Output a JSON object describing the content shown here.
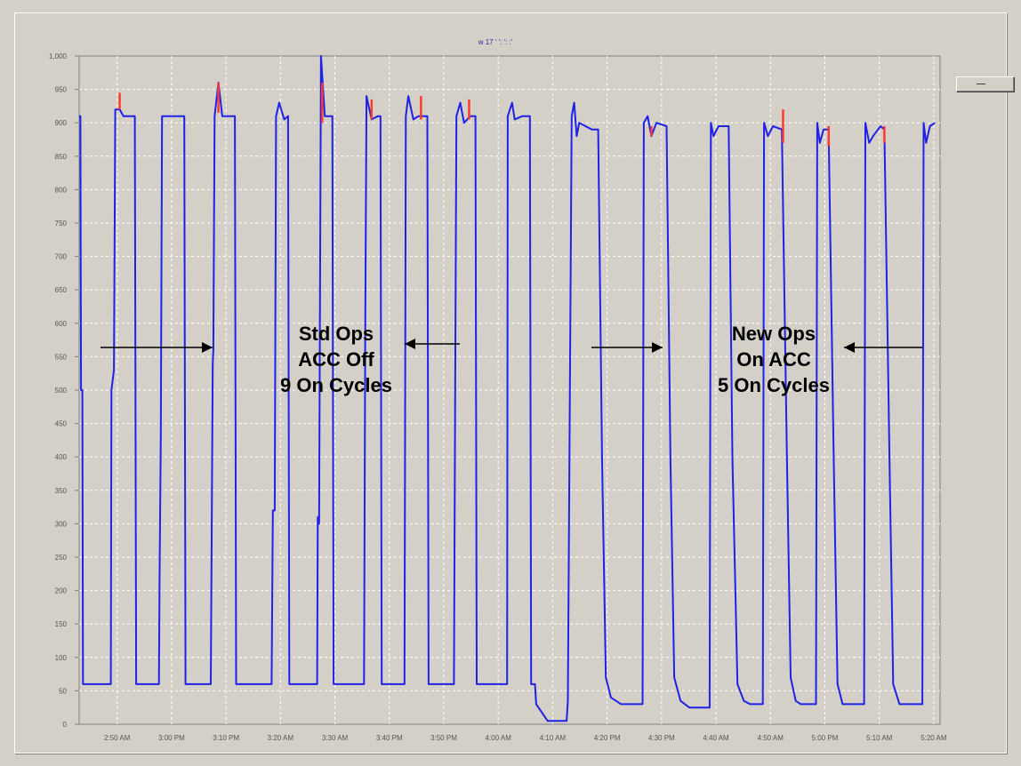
{
  "title": "w  17  ' ': ': :'",
  "y_ticks": [
    "0",
    "50",
    "100",
    "150",
    "200",
    "250",
    "300",
    "350",
    "400",
    "450",
    "500",
    "550",
    "600",
    "650",
    "700",
    "750",
    "800",
    "850",
    "900",
    "950",
    "1,000"
  ],
  "x_ticks": [
    "2:50 AM",
    "3:00 PM",
    "3:10 PM",
    "3:20 AM",
    "3:30 AM",
    "3:40 PM",
    "3:50 PM",
    "4:00 AM",
    "4:10 AM",
    "4:20 PM",
    "4:30 PM",
    "4:40 AM",
    "4:50 AM",
    "5:00 PM",
    "5:10 AM",
    "5:20 AM"
  ],
  "colors": {
    "series": "#1f22e6",
    "spike": "#ff3b30",
    "plot_bg": "#d4d0c8",
    "grid": "#ffffff"
  },
  "annotations": {
    "left": {
      "line1": "Std Ops",
      "line2": "ACC Off",
      "line3": "9 On Cycles"
    },
    "right": {
      "line1": "New Ops",
      "line2": "On ACC",
      "line3": "5 On Cycles"
    }
  },
  "button": {
    "label": "-"
  },
  "chart_data": {
    "type": "line",
    "title": "w  17  ' ': ': :'",
    "xlabel": "",
    "ylabel": "",
    "ylim": [
      0,
      1000
    ],
    "grid": true,
    "x": [
      "2:50 AM",
      "3:00 PM",
      "3:10 PM",
      "3:20 AM",
      "3:30 AM",
      "3:40 PM",
      "3:50 PM",
      "4:00 AM",
      "4:10 AM",
      "4:20 PM",
      "4:30 PM",
      "4:40 AM",
      "4:50 AM",
      "5:00 PM",
      "5:10 AM",
      "5:20 AM"
    ],
    "series": [
      {
        "points": [
          [
            0,
            910
          ],
          [
            0.1,
            910
          ],
          [
            0.15,
            500
          ],
          [
            0.25,
            500
          ],
          [
            0.3,
            60
          ],
          [
            2.5,
            60
          ],
          [
            2.55,
            500
          ],
          [
            2.75,
            530
          ],
          [
            2.85,
            920
          ],
          [
            3.2,
            920
          ],
          [
            3.5,
            910
          ],
          [
            4.3,
            910
          ],
          [
            4.4,
            910
          ],
          [
            4.5,
            60
          ],
          [
            6.3,
            60
          ],
          [
            6.35,
            215
          ],
          [
            6.45,
            430
          ],
          [
            6.55,
            910
          ],
          [
            7.3,
            910
          ],
          [
            7.7,
            910
          ],
          [
            8.3,
            910
          ],
          [
            8.4,
            60
          ],
          [
            10.4,
            60
          ],
          [
            10.55,
            540
          ],
          [
            10.6,
            560
          ],
          [
            10.7,
            910
          ],
          [
            11.0,
            960
          ],
          [
            11.3,
            910
          ],
          [
            12.0,
            910
          ],
          [
            12.3,
            910
          ],
          [
            12.4,
            60
          ],
          [
            15.2,
            60
          ],
          [
            15.3,
            320
          ],
          [
            15.45,
            320
          ],
          [
            15.55,
            910
          ],
          [
            15.8,
            930
          ],
          [
            16.2,
            905
          ],
          [
            16.5,
            910
          ],
          [
            16.6,
            60
          ],
          [
            18.8,
            60
          ],
          [
            18.85,
            310
          ],
          [
            18.95,
            300
          ],
          [
            19.1,
            1000
          ],
          [
            19.4,
            910
          ],
          [
            19.8,
            910
          ],
          [
            20.0,
            910
          ],
          [
            20.1,
            60
          ],
          [
            22.5,
            60
          ],
          [
            22.6,
            600
          ],
          [
            22.7,
            940
          ],
          [
            23.1,
            905
          ],
          [
            23.6,
            910
          ],
          [
            23.8,
            910
          ],
          [
            23.9,
            60
          ],
          [
            25.7,
            60
          ],
          [
            25.8,
            910
          ],
          [
            26.0,
            940
          ],
          [
            26.4,
            905
          ],
          [
            26.8,
            910
          ],
          [
            27.5,
            910
          ],
          [
            27.6,
            60
          ],
          [
            29.6,
            60
          ],
          [
            29.7,
            500
          ],
          [
            29.8,
            910
          ],
          [
            30.1,
            930
          ],
          [
            30.4,
            900
          ],
          [
            30.9,
            910
          ],
          [
            31.3,
            910
          ],
          [
            31.4,
            60
          ],
          [
            33.8,
            60
          ],
          [
            33.85,
            910
          ],
          [
            34.2,
            930
          ],
          [
            34.4,
            905
          ],
          [
            35.0,
            910
          ],
          [
            35.6,
            910
          ],
          [
            35.7,
            60
          ],
          [
            36.0,
            60
          ],
          [
            36.1,
            30
          ],
          [
            37.0,
            5
          ],
          [
            38.5,
            5
          ],
          [
            38.6,
            35
          ],
          [
            38.9,
            910
          ],
          [
            39.1,
            930
          ],
          [
            39.3,
            880
          ],
          [
            39.5,
            900
          ],
          [
            40.5,
            890
          ],
          [
            41.0,
            890
          ],
          [
            41.3,
            400
          ],
          [
            41.6,
            70
          ],
          [
            42.0,
            40
          ],
          [
            42.8,
            30
          ],
          [
            44.5,
            30
          ],
          [
            44.6,
            900
          ],
          [
            44.9,
            910
          ],
          [
            45.2,
            880
          ],
          [
            45.6,
            900
          ],
          [
            46.4,
            895
          ],
          [
            46.7,
            400
          ],
          [
            47.0,
            70
          ],
          [
            47.5,
            35
          ],
          [
            48.2,
            25
          ],
          [
            49.8,
            25
          ],
          [
            49.9,
            900
          ],
          [
            50.1,
            880
          ],
          [
            50.5,
            895
          ],
          [
            51.3,
            895
          ],
          [
            51.6,
            400
          ],
          [
            52.0,
            60
          ],
          [
            52.5,
            35
          ],
          [
            53.0,
            30
          ],
          [
            54.0,
            30
          ],
          [
            54.1,
            900
          ],
          [
            54.4,
            880
          ],
          [
            54.8,
            895
          ],
          [
            55.5,
            890
          ],
          [
            55.9,
            400
          ],
          [
            56.2,
            70
          ],
          [
            56.6,
            35
          ],
          [
            57.0,
            30
          ],
          [
            58.2,
            30
          ],
          [
            58.3,
            900
          ],
          [
            58.5,
            870
          ],
          [
            58.8,
            890
          ],
          [
            59.2,
            890
          ],
          [
            59.6,
            400
          ],
          [
            59.9,
            60
          ],
          [
            60.3,
            30
          ],
          [
            61.0,
            30
          ],
          [
            62.0,
            30
          ],
          [
            62.1,
            900
          ],
          [
            62.4,
            870
          ],
          [
            62.7,
            880
          ],
          [
            63.3,
            895
          ],
          [
            63.6,
            890
          ],
          [
            64.0,
            400
          ],
          [
            64.3,
            60
          ],
          [
            64.8,
            30
          ],
          [
            65.5,
            30
          ],
          [
            66.6,
            30
          ],
          [
            66.7,
            900
          ],
          [
            66.9,
            870
          ],
          [
            67.2,
            895
          ],
          [
            67.6,
            900
          ]
        ]
      }
    ],
    "spikes": [
      {
        "x": 3.2,
        "from": 920,
        "to": 945
      },
      {
        "x": 11.0,
        "from": 915,
        "to": 960
      },
      {
        "x": 19.2,
        "from": 900,
        "to": 960
      },
      {
        "x": 23.1,
        "from": 905,
        "to": 935
      },
      {
        "x": 27.0,
        "from": 905,
        "to": 940
      },
      {
        "x": 30.8,
        "from": 905,
        "to": 935
      },
      {
        "x": 45.2,
        "from": 880,
        "to": 895
      },
      {
        "x": 55.6,
        "from": 870,
        "to": 920
      },
      {
        "x": 59.2,
        "from": 865,
        "to": 895
      },
      {
        "x": 63.6,
        "from": 870,
        "to": 895
      }
    ]
  }
}
